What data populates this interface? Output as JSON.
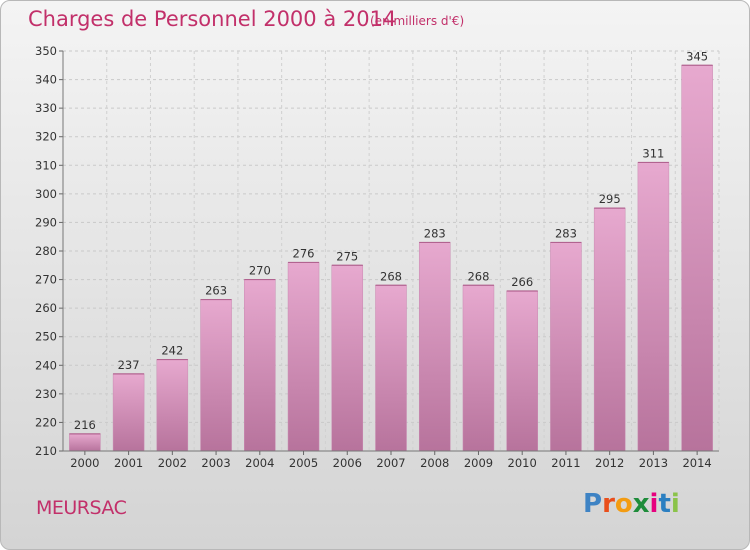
{
  "header": {
    "title": "Charges de Personnel 2000 à 2014",
    "subtitle": "(en milliers d'€)"
  },
  "footer": {
    "commune": "MEURSAC",
    "logo_text": "Proxiti"
  },
  "colors": {
    "title": "#c2306a",
    "bar_top": "#e7a9cf",
    "bar_bottom": "#b7739c",
    "logo": [
      "#3e83c4",
      "#e94e1b",
      "#f39c12",
      "#1e8c3a",
      "#e6007e",
      "#2b7fc1",
      "#8bc34a"
    ]
  },
  "chart_data": {
    "type": "bar",
    "categories": [
      "2000",
      "2001",
      "2002",
      "2003",
      "2004",
      "2005",
      "2006",
      "2007",
      "2008",
      "2009",
      "2010",
      "2011",
      "2012",
      "2013",
      "2014"
    ],
    "values": [
      216,
      237,
      242,
      263,
      270,
      276,
      275,
      268,
      283,
      268,
      266,
      283,
      295,
      311,
      345
    ],
    "title": "Charges de Personnel 2000 à 2014",
    "xlabel": "",
    "ylabel": "",
    "ylim": [
      210,
      350
    ],
    "yticks": [
      210,
      220,
      230,
      240,
      250,
      260,
      270,
      280,
      290,
      300,
      310,
      320,
      330,
      340,
      350
    ],
    "grid": "horizontal dashed",
    "legend": "none"
  }
}
